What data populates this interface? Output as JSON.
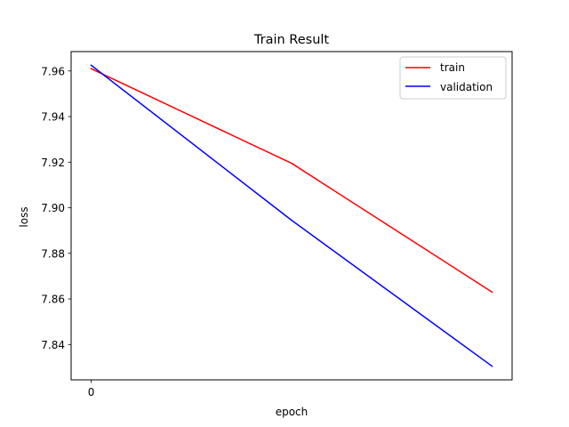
{
  "chart_data": {
    "type": "line",
    "title": "Train Result",
    "xlabel": "epoch",
    "ylabel": "loss",
    "x": [
      0,
      1,
      2
    ],
    "x_ticks": [
      0
    ],
    "x_tick_labels": [
      "0"
    ],
    "xlim": [
      -0.1,
      2.1
    ],
    "ylim": [
      7.8245,
      7.9685
    ],
    "y_ticks": [
      7.84,
      7.86,
      7.88,
      7.9,
      7.92,
      7.94,
      7.96
    ],
    "y_tick_labels": [
      "7.84",
      "7.86",
      "7.88",
      "7.90",
      "7.92",
      "7.94",
      "7.96"
    ],
    "grid": false,
    "legend": "top-right",
    "series": [
      {
        "name": "train",
        "color": "#ff0000",
        "values": [
          7.961,
          7.9195,
          7.863
        ]
      },
      {
        "name": "validation",
        "color": "#0000ff",
        "values": [
          7.9625,
          7.8945,
          7.8305
        ]
      }
    ]
  }
}
